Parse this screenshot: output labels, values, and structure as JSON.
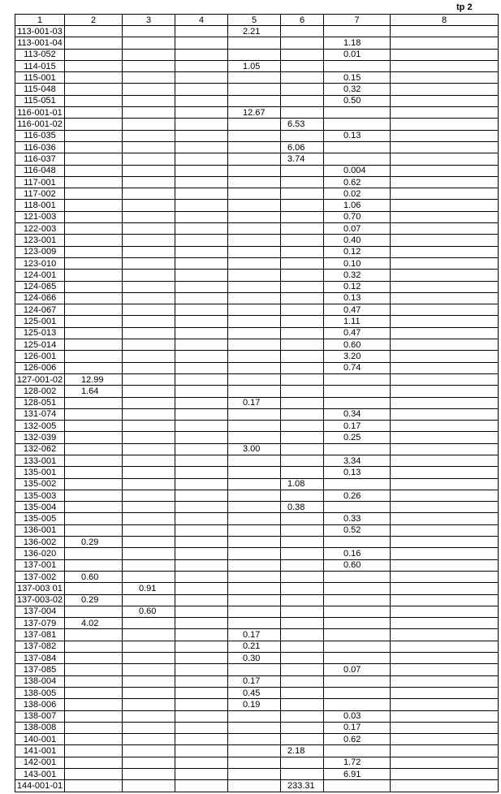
{
  "page_label": "tp 2",
  "headers": [
    "1",
    "2",
    "3",
    "4",
    "5",
    "6",
    "7",
    "8"
  ],
  "rows": [
    [
      "113-001-03",
      "",
      "",
      "",
      "2.21",
      "",
      "",
      ""
    ],
    [
      "113-001-04",
      "",
      "",
      "",
      "",
      "",
      "1.18",
      ""
    ],
    [
      "113-052",
      "",
      "",
      "",
      "",
      "",
      "0.01",
      ""
    ],
    [
      "114-015",
      "",
      "",
      "",
      "1.05",
      "",
      "",
      ""
    ],
    [
      "115-001",
      "",
      "",
      "",
      "",
      "",
      "0.15",
      ""
    ],
    [
      "115-048",
      "",
      "",
      "",
      "",
      "",
      "0.32",
      ""
    ],
    [
      "115-051",
      "",
      "",
      "",
      "",
      "",
      "0.50",
      ""
    ],
    [
      "116-001-01",
      "",
      "",
      "",
      "12.67",
      "",
      "",
      ""
    ],
    [
      "116-001-02",
      "",
      "",
      "",
      "",
      "6.53",
      "",
      ""
    ],
    [
      "116-035",
      "",
      "",
      "",
      "",
      "",
      "0.13",
      ""
    ],
    [
      "116-036",
      "",
      "",
      "",
      "",
      "6.06",
      "",
      ""
    ],
    [
      "116-037",
      "",
      "",
      "",
      "",
      "3.74",
      "",
      ""
    ],
    [
      "116-048",
      "",
      "",
      "",
      "",
      "",
      "0.004",
      ""
    ],
    [
      "117-001",
      "",
      "",
      "",
      "",
      "",
      "0.62",
      ""
    ],
    [
      "117-002",
      "",
      "",
      "",
      "",
      "",
      "0.02",
      ""
    ],
    [
      "118-001",
      "",
      "",
      "",
      "",
      "",
      "1.06",
      ""
    ],
    [
      "121-003",
      "",
      "",
      "",
      "",
      "",
      "0.70",
      ""
    ],
    [
      "122-003",
      "",
      "",
      "",
      "",
      "",
      "0.07",
      ""
    ],
    [
      "123-001",
      "",
      "",
      "",
      "",
      "",
      "0.40",
      ""
    ],
    [
      "123-009",
      "",
      "",
      "",
      "",
      "",
      "0.12",
      ""
    ],
    [
      "123-010",
      "",
      "",
      "",
      "",
      "",
      "0.10",
      ""
    ],
    [
      "124-001",
      "",
      "",
      "",
      "",
      "",
      "0.32",
      ""
    ],
    [
      "124-065",
      "",
      "",
      "",
      "",
      "",
      "0.12",
      ""
    ],
    [
      "124-066",
      "",
      "",
      "",
      "",
      "",
      "0.13",
      ""
    ],
    [
      "124-067",
      "",
      "",
      "",
      "",
      "",
      "0.47",
      ""
    ],
    [
      "125-001",
      "",
      "",
      "",
      "",
      "",
      "1.11",
      ""
    ],
    [
      "125-013",
      "",
      "",
      "",
      "",
      "",
      "0.47",
      ""
    ],
    [
      "125-014",
      "",
      "",
      "",
      "",
      "",
      "0.60",
      ""
    ],
    [
      "126-001",
      "",
      "",
      "",
      "",
      "",
      "3.20",
      ""
    ],
    [
      "126-006",
      "",
      "",
      "",
      "",
      "",
      "0.74",
      ""
    ],
    [
      "127-001-02",
      "12.99",
      "",
      "",
      "",
      "",
      "",
      ""
    ],
    [
      "128-002",
      "1.64",
      "",
      "",
      "",
      "",
      "",
      ""
    ],
    [
      "128-051",
      "",
      "",
      "",
      "0.17",
      "",
      "",
      ""
    ],
    [
      "131-074",
      "",
      "",
      "",
      "",
      "",
      "0.34",
      ""
    ],
    [
      "132-005",
      "",
      "",
      "",
      "",
      "",
      "0.17",
      ""
    ],
    [
      "132-039",
      "",
      "",
      "",
      "",
      "",
      "0.25",
      ""
    ],
    [
      "132-062",
      "",
      "",
      "",
      "3.00",
      "",
      "",
      ""
    ],
    [
      "133-001",
      "",
      "",
      "",
      "",
      "",
      "3.34",
      ""
    ],
    [
      "135-001",
      "",
      "",
      "",
      "",
      "",
      "0.13",
      ""
    ],
    [
      "135-002",
      "",
      "",
      "",
      "",
      "1.08",
      "",
      ""
    ],
    [
      "135-003",
      "",
      "",
      "",
      "",
      "",
      "0.26",
      ""
    ],
    [
      "135-004",
      "",
      "",
      "",
      "",
      "0.38",
      "",
      ""
    ],
    [
      "135-005",
      "",
      "",
      "",
      "",
      "",
      "0.33",
      ""
    ],
    [
      "136-001",
      "",
      "",
      "",
      "",
      "",
      "0.52",
      ""
    ],
    [
      "136-002",
      "0.29",
      "",
      "",
      "",
      "",
      "",
      ""
    ],
    [
      "136-020",
      "",
      "",
      "",
      "",
      "",
      "0.16",
      ""
    ],
    [
      "137-001",
      "",
      "",
      "",
      "",
      "",
      "0.60",
      ""
    ],
    [
      "137-002",
      "0.60",
      "",
      "",
      "",
      "",
      "",
      ""
    ],
    [
      "137-003 01",
      "",
      "0.91",
      "",
      "",
      "",
      "",
      ""
    ],
    [
      "137-003-02",
      "0.29",
      "",
      "",
      "",
      "",
      "",
      ""
    ],
    [
      "137-004",
      "",
      "0.60",
      "",
      "",
      "",
      "",
      ""
    ],
    [
      "137-079",
      "4.02",
      "",
      "",
      "",
      "",
      "",
      ""
    ],
    [
      "137-081",
      "",
      "",
      "",
      "0.17",
      "",
      "",
      ""
    ],
    [
      "137-082",
      "",
      "",
      "",
      "0.21",
      "",
      "",
      ""
    ],
    [
      "137-084",
      "",
      "",
      "",
      "0.30",
      "",
      "",
      ""
    ],
    [
      "137-085",
      "",
      "",
      "",
      "",
      "",
      "0.07",
      ""
    ],
    [
      "138-004",
      "",
      "",
      "",
      "0.17",
      "",
      "",
      ""
    ],
    [
      "138-005",
      "",
      "",
      "",
      "0.45",
      "",
      "",
      ""
    ],
    [
      "138-006",
      "",
      "",
      "",
      "0.19",
      "",
      "",
      ""
    ],
    [
      "138-007",
      "",
      "",
      "",
      "",
      "",
      "0.03",
      ""
    ],
    [
      "138-008",
      "",
      "",
      "",
      "",
      "",
      "0.17",
      ""
    ],
    [
      "140-001",
      "",
      "",
      "",
      "",
      "",
      "0.62",
      ""
    ],
    [
      "141-001",
      "",
      "",
      "",
      "",
      "2.18",
      "",
      ""
    ],
    [
      "142-001",
      "",
      "",
      "",
      "",
      "",
      "1.72",
      ""
    ],
    [
      "143-001",
      "",
      "",
      "",
      "",
      "",
      "6.91",
      ""
    ],
    [
      "144-001-01",
      "",
      "",
      "",
      "",
      "233.31",
      "",
      ""
    ]
  ]
}
